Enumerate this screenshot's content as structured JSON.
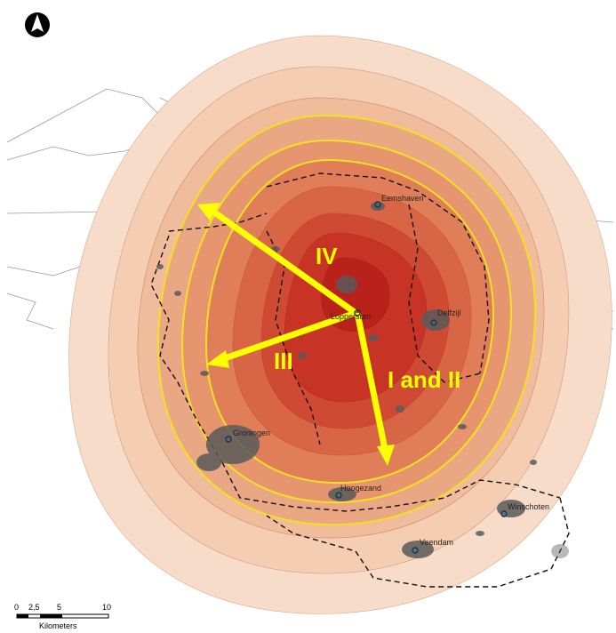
{
  "map": {
    "north_arrow": {
      "letter": "N"
    },
    "cities": [
      {
        "name": "Eemshaven"
      },
      {
        "name": "Loppersum"
      },
      {
        "name": "Delfzijl"
      },
      {
        "name": "Groningen"
      },
      {
        "name": "Hoogezand"
      },
      {
        "name": "Winschoten"
      },
      {
        "name": "Veendam"
      }
    ],
    "zones": {
      "z4": "IV",
      "z3": "III",
      "z12": "I and II"
    },
    "scale_bar": {
      "ticks": [
        "0",
        "2,5",
        "5",
        "10"
      ],
      "unit": "Kilometers"
    },
    "colors": {
      "outer": "#f6dcc8",
      "mid": "#f0b898",
      "core": "#c8281c",
      "contour": "#f2e21e",
      "arrow": "#ffff00",
      "urban": "#5a5a5a"
    }
  }
}
